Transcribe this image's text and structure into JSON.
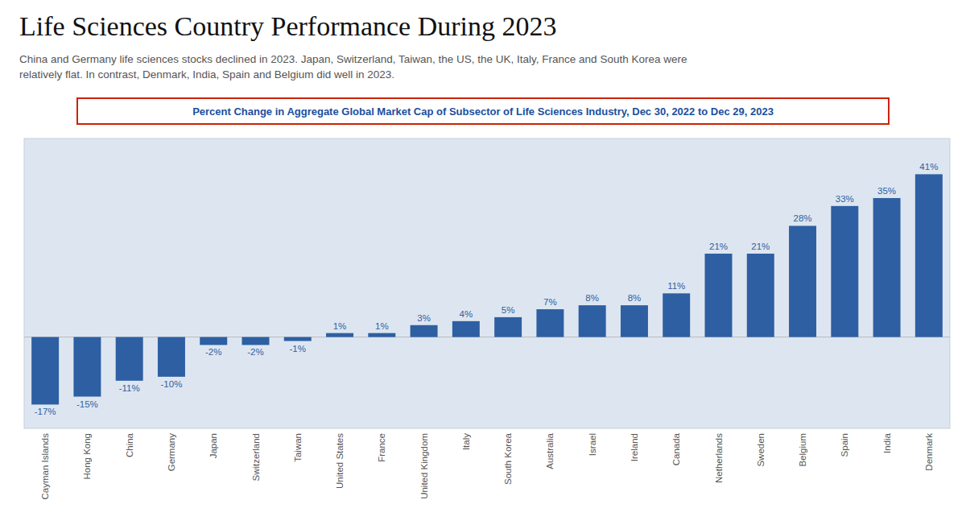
{
  "chart_data": {
    "type": "bar",
    "title": "Life Sciences Country Performance During 2023",
    "subtitle": "China and Germany life sciences stocks declined in 2023. Japan, Switzerland, Taiwan, the US, the UK, Italy, France and South Korea were\nrelatively flat. In contrast, Denmark, India, Spain and Belgium did well in 2023.",
    "annotations": [
      "Percent Change in Aggregate Global Market Cap of Subsector of Life Sciences Industry, Dec 30, 2022 to Dec 29, 2023"
    ],
    "categories": [
      "Cayman Islands",
      "Hong Kong",
      "China",
      "Germany",
      "Japan",
      "Switzerland",
      "Taiwan",
      "United States",
      "France",
      "United Kingdom",
      "Italy",
      "South Korea",
      "Australia",
      "Israel",
      "Ireland",
      "Canada",
      "Netherlands",
      "Sweden",
      "Belgium",
      "Spain",
      "India",
      "Denmark"
    ],
    "values": [
      -17,
      -15,
      -11,
      -10,
      -2,
      -2,
      -1,
      1,
      1,
      3,
      4,
      5,
      7,
      8,
      8,
      11,
      21,
      21,
      28,
      33,
      35,
      41
    ],
    "value_labels": [
      "-17%",
      "-15%",
      "-11%",
      "-10%",
      "-2%",
      "-2%",
      "-1%",
      "1%",
      "1%",
      "3%",
      "4%",
      "5%",
      "7%",
      "8%",
      "8%",
      "11%",
      "21%",
      "21%",
      "28%",
      "33%",
      "35%",
      "41%"
    ],
    "color": "#2E5FA3",
    "ylim": [
      -23,
      50
    ],
    "grid": false,
    "data_labels": true,
    "tick_labels": "x"
  }
}
